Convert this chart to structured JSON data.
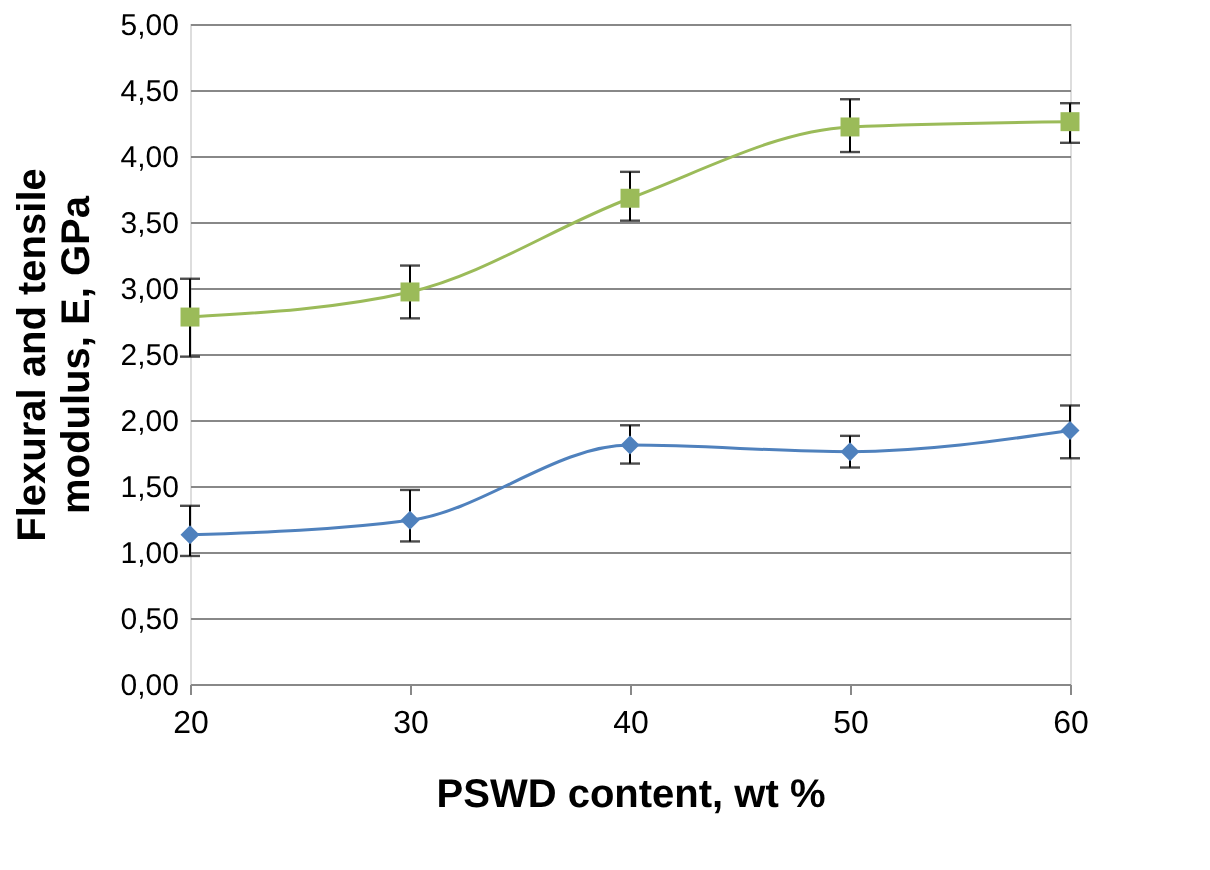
{
  "chart_data": {
    "type": "line",
    "xlabel": "PSWD  content, wt %",
    "ylabel": "Flexural and tensile modulus, E, GPa",
    "x": [
      20,
      30,
      40,
      50,
      60
    ],
    "series": [
      {
        "color": "#9bbb59",
        "marker": "square",
        "values": [
          2.78,
          2.97,
          3.68,
          4.22,
          4.26
        ],
        "errors": [
          [
            2.48,
            3.07
          ],
          [
            2.77,
            3.17
          ],
          [
            3.51,
            3.88
          ],
          [
            4.03,
            4.43
          ],
          [
            4.1,
            4.4
          ]
        ]
      },
      {
        "color": "#4f81bd",
        "marker": "diamond",
        "values": [
          1.13,
          1.24,
          1.81,
          1.76,
          1.92
        ],
        "errors": [
          [
            0.97,
            1.35
          ],
          [
            1.08,
            1.47
          ],
          [
            1.67,
            1.96
          ],
          [
            1.64,
            1.88
          ],
          [
            1.71,
            2.11
          ]
        ]
      }
    ],
    "xlim": [
      20,
      60
    ],
    "xticks": [
      20,
      30,
      40,
      50,
      60
    ],
    "ylim": [
      0,
      5
    ],
    "yticks": [
      {
        "value": 0,
        "label": "0,00"
      },
      {
        "value": 0.5,
        "label": "0,50"
      },
      {
        "value": 1,
        "label": "1,00"
      },
      {
        "value": 1.5,
        "label": "1,50"
      },
      {
        "value": 2,
        "label": "2,00"
      },
      {
        "value": 2.5,
        "label": "2,50"
      },
      {
        "value": 3,
        "label": "3,00"
      },
      {
        "value": 3.5,
        "label": "3,50"
      },
      {
        "value": 4,
        "label": "4,00"
      },
      {
        "value": 4.5,
        "label": "4,50"
      },
      {
        "value": 5,
        "label": "5,00"
      }
    ],
    "grid": "y",
    "legend": false,
    "line_style": "solid"
  }
}
